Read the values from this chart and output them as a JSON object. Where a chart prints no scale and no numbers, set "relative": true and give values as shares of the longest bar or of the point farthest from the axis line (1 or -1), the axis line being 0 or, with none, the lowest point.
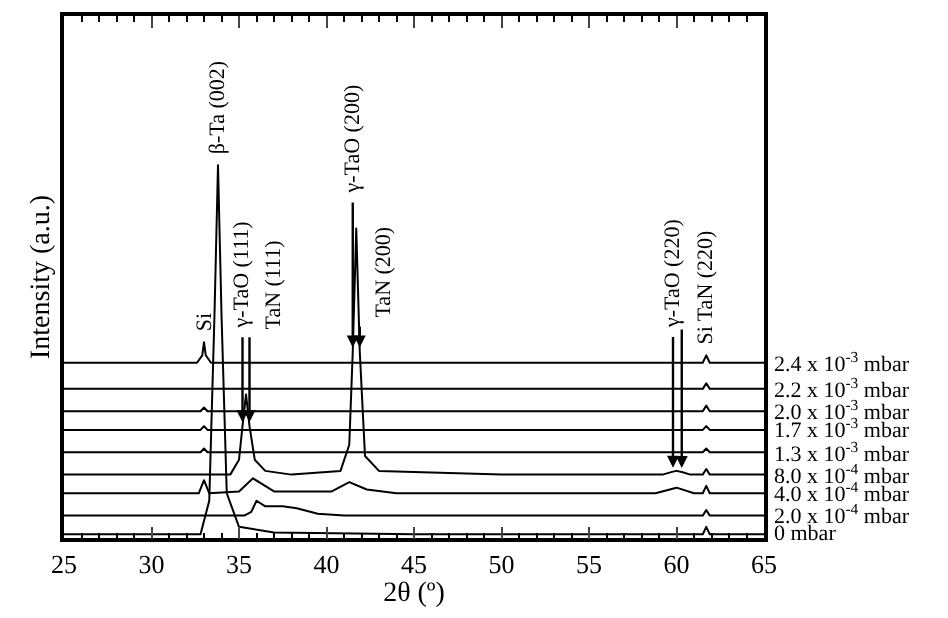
{
  "chart_data": {
    "type": "line",
    "relative": true,
    "xlabel": "2θ (º)",
    "ylabel": "Intensity (a.u.)",
    "xlim": [
      25,
      65
    ],
    "xticks": [
      25,
      30,
      35,
      40,
      45,
      50,
      55,
      60,
      65
    ],
    "legend": false,
    "marker": "none",
    "line_style": "solid",
    "series": [
      {
        "name": "2.4 x 10$^{-3}$ mbar",
        "color": "#000000",
        "x": [
          25,
          32.6,
          32.9,
          33.0,
          33.1,
          33.4,
          40,
          50,
          61.5,
          61.7,
          61.9,
          65
        ],
        "values": [
          0.47,
          0.47,
          0.49,
          0.525,
          0.49,
          0.47,
          0.47,
          0.47,
          0.47,
          0.49,
          0.47,
          0.47
        ]
      },
      {
        "name": "2.2 x 10$^{-3}$ mbar",
        "color": "#000000",
        "x": [
          25,
          40,
          61.5,
          61.7,
          61.9,
          65
        ],
        "values": [
          0.4,
          0.4,
          0.4,
          0.415,
          0.4,
          0.4
        ]
      },
      {
        "name": "2.0 x 10$^{-3}$ mbar",
        "color": "#000000",
        "x": [
          25,
          32.8,
          33.0,
          33.2,
          45,
          61.5,
          61.7,
          61.9,
          65
        ],
        "values": [
          0.34,
          0.34,
          0.35,
          0.34,
          0.34,
          0.34,
          0.355,
          0.34,
          0.34
        ]
      },
      {
        "name": "1.7 x 10$^{-3}$ mbar",
        "color": "#000000",
        "x": [
          25,
          32.8,
          33.0,
          33.2,
          45,
          61.5,
          61.7,
          61.9,
          65
        ],
        "values": [
          0.29,
          0.29,
          0.3,
          0.29,
          0.29,
          0.29,
          0.3,
          0.29,
          0.29
        ]
      },
      {
        "name": "1.3 x 10$^{-3}$ mbar",
        "color": "#000000",
        "x": [
          25,
          32.8,
          33.0,
          33.2,
          45,
          61.5,
          61.7,
          61.9,
          65
        ],
        "values": [
          0.23,
          0.23,
          0.24,
          0.23,
          0.23,
          0.23,
          0.24,
          0.23,
          0.23
        ]
      },
      {
        "name": "8.0 x 10$^{-4}$ mbar",
        "color": "#000000",
        "x": [
          25,
          34.5,
          35.0,
          35.2,
          35.4,
          35.6,
          35.9,
          36.5,
          38,
          40.8,
          41.3,
          41.5,
          41.7,
          41.9,
          42.2,
          43,
          50,
          59.2,
          59.8,
          60.0,
          60.3,
          60.8,
          61.5,
          61.7,
          61.9,
          65
        ],
        "values": [
          0.17,
          0.17,
          0.21,
          0.3,
          0.385,
          0.3,
          0.21,
          0.18,
          0.17,
          0.18,
          0.25,
          0.5,
          0.83,
          0.5,
          0.22,
          0.18,
          0.17,
          0.17,
          0.178,
          0.18,
          0.177,
          0.17,
          0.17,
          0.185,
          0.17,
          0.17
        ]
      },
      {
        "name": "4.0 x 10$^{-4}$ mbar",
        "color": "#000000",
        "x": [
          25,
          32.7,
          33.0,
          33.3,
          35,
          35.8,
          37,
          40.3,
          41.3,
          42.3,
          44,
          58.8,
          60.0,
          61.0,
          61.5,
          61.7,
          61.9,
          65
        ],
        "values": [
          0.12,
          0.12,
          0.155,
          0.12,
          0.125,
          0.16,
          0.125,
          0.125,
          0.15,
          0.13,
          0.12,
          0.12,
          0.135,
          0.12,
          0.12,
          0.14,
          0.12,
          0.12
        ]
      },
      {
        "name": "2.0 x 10$^{-4}$ mbar",
        "color": "#000000",
        "x": [
          25,
          35.3,
          35.7,
          36.0,
          36.5,
          37.5,
          38.3,
          39.5,
          41,
          50,
          61.5,
          61.7,
          61.9,
          65
        ],
        "values": [
          0.06,
          0.06,
          0.07,
          0.1,
          0.085,
          0.085,
          0.08,
          0.065,
          0.06,
          0.06,
          0.06,
          0.075,
          0.06,
          0.06
        ]
      },
      {
        "name": "0 mbar",
        "color": "#000000",
        "x": [
          25,
          32.8,
          33.3,
          33.6,
          33.8,
          34.0,
          34.3,
          35,
          37,
          45,
          61.5,
          61.7,
          61.9,
          65
        ],
        "values": [
          0.01,
          0.01,
          0.1,
          0.6,
          1.0,
          0.6,
          0.12,
          0.03,
          0.015,
          0.01,
          0.01,
          0.03,
          0.01,
          0.01
        ]
      }
    ],
    "annotations": [
      {
        "text": "Si",
        "x": 33.0,
        "y": 0.525
      },
      {
        "text": "β-Ta (002)",
        "x": 33.8,
        "y": 1.0
      },
      {
        "text": "γ-TaO (111)",
        "x": 35.2,
        "y": 0.3
      },
      {
        "text": "TaN (111)",
        "x": 35.6,
        "y": 0.3
      },
      {
        "text": "γ-TaO (200)",
        "x": 41.5,
        "y": 0.5
      },
      {
        "text": "TaN (200)",
        "x": 41.9,
        "y": 0.5
      },
      {
        "text": "γ-TaO (220)",
        "x": 59.8,
        "y": 0.178
      },
      {
        "text": "TaN (220)",
        "x": 60.3,
        "y": 0.177
      },
      {
        "text": "Si",
        "x": 61.7,
        "y": 0.49
      }
    ]
  }
}
